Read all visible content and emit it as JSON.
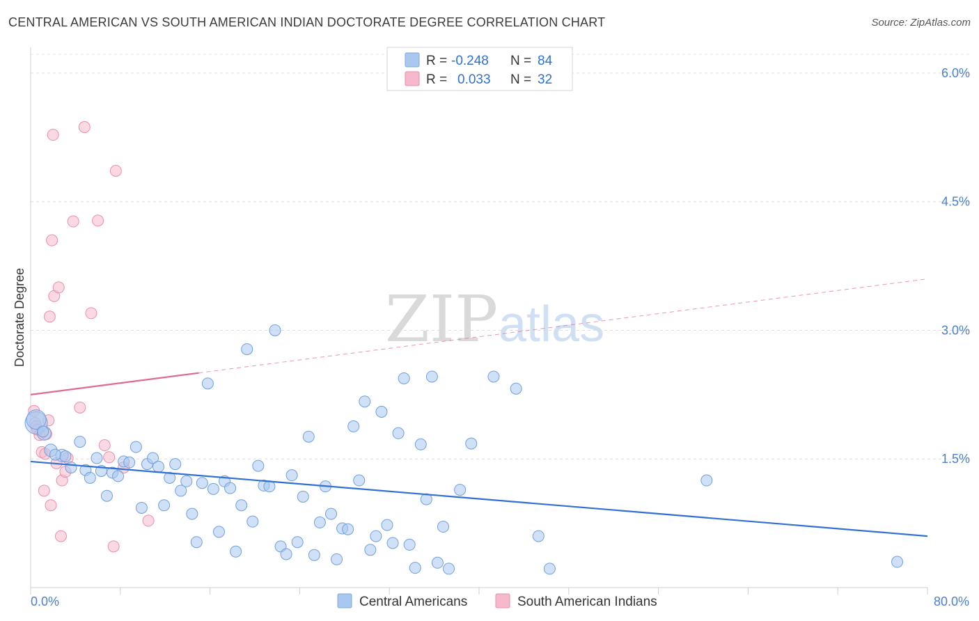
{
  "header": {
    "title": "CENTRAL AMERICAN VS SOUTH AMERICAN INDIAN DOCTORATE DEGREE CORRELATION CHART",
    "source": "Source: ZipAtlas.com"
  },
  "watermark": {
    "zip": "ZIP",
    "atlas": "atlas"
  },
  "legend": {
    "rows": [
      {
        "r_label": "R =",
        "r_value": "-0.248",
        "n_label": "N =",
        "n_value": "84",
        "color": "#a9c8f0"
      },
      {
        "r_label": "R =",
        "r_value": "0.033",
        "n_label": "N =",
        "n_value": "32",
        "color": "#f6b9cc"
      }
    ]
  },
  "bottom_legend": {
    "items": [
      {
        "label": "Central Americans",
        "color": "#a9c8f0"
      },
      {
        "label": "South American Indians",
        "color": "#f6b9cc"
      }
    ]
  },
  "chart_data": {
    "type": "scatter",
    "title": "CENTRAL AMERICAN VS SOUTH AMERICAN INDIAN DOCTORATE DEGREE CORRELATION CHART",
    "xlabel": "",
    "ylabel": "Doctorate Degree",
    "xlim": [
      0,
      80
    ],
    "ylim": [
      0,
      6.3
    ],
    "x_tick_labels": [
      "0.0%",
      "80.0%"
    ],
    "y_ticks": [
      1.5,
      3.0,
      4.5,
      6.0
    ],
    "y_tick_labels": [
      "1.5%",
      "3.0%",
      "4.5%",
      "6.0%"
    ],
    "grid": true,
    "series": [
      {
        "name": "Central Americans",
        "color": "#a9c8f0",
        "stroke": "#6f9fdc",
        "trend": {
          "x": [
            0,
            80
          ],
          "y": [
            1.47,
            0.6
          ],
          "color": "#2f6fd6",
          "style": "solid"
        },
        "points": [
          [
            0.5,
            1.92,
            16
          ],
          [
            0.5,
            1.96,
            14
          ],
          [
            1.2,
            1.8,
            10
          ],
          [
            1.8,
            1.6,
            9
          ],
          [
            2.8,
            1.54,
            9
          ],
          [
            3.6,
            1.4,
            8
          ],
          [
            4.4,
            1.7,
            8
          ],
          [
            4.9,
            1.37,
            8
          ],
          [
            5.3,
            1.28,
            8
          ],
          [
            5.9,
            1.51,
            8
          ],
          [
            6.3,
            1.36,
            8
          ],
          [
            6.8,
            1.07,
            8
          ],
          [
            7.3,
            1.34,
            8
          ],
          [
            7.8,
            1.3,
            8
          ],
          [
            8.3,
            1.47,
            8
          ],
          [
            8.8,
            1.46,
            8
          ],
          [
            9.4,
            1.64,
            8
          ],
          [
            9.9,
            0.93,
            8
          ],
          [
            10.4,
            1.44,
            8
          ],
          [
            10.9,
            1.51,
            8
          ],
          [
            11.4,
            1.41,
            8
          ],
          [
            11.9,
            0.96,
            8
          ],
          [
            12.4,
            1.28,
            8
          ],
          [
            12.9,
            1.44,
            8
          ],
          [
            13.4,
            1.13,
            8
          ],
          [
            13.9,
            1.24,
            8
          ],
          [
            14.4,
            0.86,
            8
          ],
          [
            14.8,
            0.53,
            8
          ],
          [
            15.3,
            1.22,
            8
          ],
          [
            15.8,
            2.38,
            8
          ],
          [
            16.3,
            1.15,
            8
          ],
          [
            16.8,
            0.65,
            8
          ],
          [
            17.3,
            1.24,
            8
          ],
          [
            17.8,
            1.16,
            8
          ],
          [
            18.3,
            0.42,
            8
          ],
          [
            18.8,
            0.96,
            8
          ],
          [
            19.3,
            2.78,
            8
          ],
          [
            19.8,
            0.77,
            8
          ],
          [
            20.3,
            1.42,
            8
          ],
          [
            20.8,
            1.19,
            8
          ],
          [
            21.3,
            1.18,
            8
          ],
          [
            21.8,
            3.0,
            8
          ],
          [
            22.3,
            0.48,
            8
          ],
          [
            22.8,
            0.39,
            8
          ],
          [
            23.3,
            1.31,
            8
          ],
          [
            23.8,
            0.53,
            8
          ],
          [
            24.3,
            1.06,
            8
          ],
          [
            24.8,
            1.76,
            8
          ],
          [
            25.3,
            0.38,
            8
          ],
          [
            25.8,
            0.76,
            8
          ],
          [
            26.3,
            1.18,
            8
          ],
          [
            26.8,
            0.86,
            8
          ],
          [
            27.3,
            0.33,
            8
          ],
          [
            27.8,
            0.69,
            8
          ],
          [
            28.3,
            0.68,
            8
          ],
          [
            28.8,
            1.88,
            8
          ],
          [
            29.3,
            1.25,
            8
          ],
          [
            29.8,
            2.17,
            8
          ],
          [
            30.3,
            0.44,
            8
          ],
          [
            30.8,
            0.6,
            8
          ],
          [
            31.3,
            2.05,
            8
          ],
          [
            31.8,
            0.73,
            8
          ],
          [
            32.3,
            0.52,
            8
          ],
          [
            32.8,
            1.8,
            8
          ],
          [
            33.3,
            2.44,
            8
          ],
          [
            33.8,
            0.5,
            8
          ],
          [
            34.3,
            0.23,
            8
          ],
          [
            34.8,
            1.67,
            8
          ],
          [
            35.3,
            1.03,
            8
          ],
          [
            35.8,
            2.46,
            8
          ],
          [
            36.3,
            0.29,
            8
          ],
          [
            36.8,
            0.71,
            8
          ],
          [
            37.3,
            0.22,
            8
          ],
          [
            38.3,
            1.14,
            8
          ],
          [
            39.3,
            1.68,
            8
          ],
          [
            41.3,
            2.46,
            8
          ],
          [
            43.3,
            2.32,
            8
          ],
          [
            45.3,
            0.6,
            8
          ],
          [
            46.3,
            0.22,
            8
          ],
          [
            60.3,
            1.25,
            8
          ],
          [
            77.3,
            0.3,
            8
          ],
          [
            1.1,
            1.82,
            8
          ],
          [
            3.1,
            1.53,
            8
          ],
          [
            2.2,
            1.55,
            8
          ]
        ]
      },
      {
        "name": "South American Indians",
        "color": "#f6b9cc",
        "stroke": "#e98fab",
        "trend": {
          "x": [
            0,
            80
          ],
          "y": [
            2.25,
            3.6
          ],
          "color": "#e0698f",
          "style": "solid-then-dashed",
          "solid_until": 15
        },
        "points": [
          [
            0.3,
            2.06,
            8
          ],
          [
            0.4,
            1.92,
            8
          ],
          [
            0.5,
            1.88,
            8
          ],
          [
            0.6,
            1.84,
            8
          ],
          [
            0.8,
            1.78,
            8
          ],
          [
            1.0,
            1.58,
            8
          ],
          [
            1.2,
            1.13,
            8
          ],
          [
            1.3,
            1.56,
            8
          ],
          [
            1.4,
            1.79,
            8
          ],
          [
            1.6,
            1.95,
            8
          ],
          [
            1.7,
            3.16,
            8
          ],
          [
            1.8,
            0.96,
            8
          ],
          [
            1.9,
            4.05,
            8
          ],
          [
            2.0,
            5.28,
            8
          ],
          [
            2.1,
            3.4,
            8
          ],
          [
            2.3,
            1.45,
            8
          ],
          [
            2.5,
            3.5,
            8
          ],
          [
            2.7,
            0.6,
            8
          ],
          [
            2.8,
            1.25,
            8
          ],
          [
            3.1,
            1.35,
            8
          ],
          [
            3.3,
            1.51,
            8
          ],
          [
            3.8,
            4.27,
            8
          ],
          [
            4.4,
            2.1,
            8
          ],
          [
            4.8,
            5.37,
            8
          ],
          [
            5.4,
            3.2,
            8
          ],
          [
            6.0,
            4.28,
            8
          ],
          [
            6.6,
            1.66,
            8
          ],
          [
            7.0,
            1.52,
            8
          ],
          [
            7.4,
            0.48,
            8
          ],
          [
            7.6,
            4.86,
            8
          ],
          [
            8.3,
            1.4,
            8
          ],
          [
            10.5,
            0.78,
            8
          ]
        ]
      }
    ]
  }
}
